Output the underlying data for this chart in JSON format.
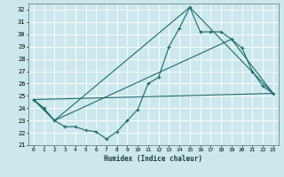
{
  "xlabel": "Humidex (Indice chaleur)",
  "xlim": [
    -0.5,
    23.5
  ],
  "ylim": [
    21,
    32.5
  ],
  "yticks": [
    21,
    22,
    23,
    24,
    25,
    26,
    27,
    28,
    29,
    30,
    31,
    32
  ],
  "xticks": [
    0,
    1,
    2,
    3,
    4,
    5,
    6,
    7,
    8,
    9,
    10,
    11,
    12,
    13,
    14,
    15,
    16,
    17,
    18,
    19,
    20,
    21,
    22,
    23
  ],
  "background_color": "#cce8ec",
  "grid_color": "#ffffff",
  "line_color": "#1a6b6b",
  "line1_x": [
    0,
    1,
    2,
    3,
    4,
    5,
    6,
    7,
    8,
    9,
    10,
    11,
    12,
    13,
    14,
    15,
    16,
    17,
    18,
    19,
    20,
    21,
    22,
    23
  ],
  "line1_y": [
    24.7,
    24.0,
    23.0,
    22.5,
    22.5,
    22.2,
    22.1,
    21.5,
    22.1,
    23.0,
    23.9,
    26.0,
    26.5,
    29.0,
    30.5,
    32.2,
    30.2,
    30.2,
    30.2,
    29.6,
    28.9,
    27.0,
    25.8,
    25.2
  ],
  "line3_x": [
    0,
    2,
    15,
    23
  ],
  "line3_y": [
    24.7,
    23.0,
    32.2,
    25.2
  ],
  "line4_x": [
    0,
    2,
    19,
    23
  ],
  "line4_y": [
    24.7,
    23.0,
    29.6,
    25.2
  ],
  "line5_x": [
    0,
    23
  ],
  "line5_y": [
    24.7,
    25.2
  ]
}
